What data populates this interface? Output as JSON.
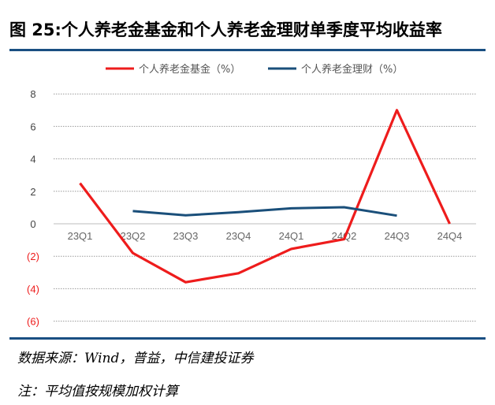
{
  "title": "图 25:个人养老金基金和个人养老金理财单季度平均收益率",
  "source": "数据来源：Wind，普益，中信建投证券",
  "note": "注：平均值按规模加权计算",
  "chart_data": {
    "type": "line",
    "title": "图 25:个人养老金基金和个人养老金理财单季度平均收益率",
    "categories": [
      "23Q1",
      "23Q2",
      "23Q3",
      "23Q4",
      "24Q1",
      "24Q2",
      "24Q3",
      "24Q4"
    ],
    "series": [
      {
        "name": "个人养老金基金（%）",
        "color": "#ee1c1c",
        "values": [
          2.5,
          -1.8,
          -3.6,
          -3.05,
          -1.55,
          -0.95,
          7.0,
          0.0
        ]
      },
      {
        "name": "个人养老金理财（%）",
        "color": "#1a4f7a",
        "values": [
          null,
          0.78,
          0.52,
          0.72,
          0.95,
          1.02,
          0.5,
          null
        ]
      }
    ],
    "yticks": [
      8,
      6,
      4,
      2,
      0,
      -2,
      -4,
      -6
    ],
    "ytick_labels": [
      "8",
      "6",
      "4",
      "2",
      "0",
      "(2)",
      "(4)",
      "(6)"
    ],
    "ylim": [
      -6,
      8
    ],
    "negative_label_color": "#ee1c1c",
    "legend": "top-center",
    "grid": true,
    "xlabel": "",
    "ylabel": ""
  }
}
